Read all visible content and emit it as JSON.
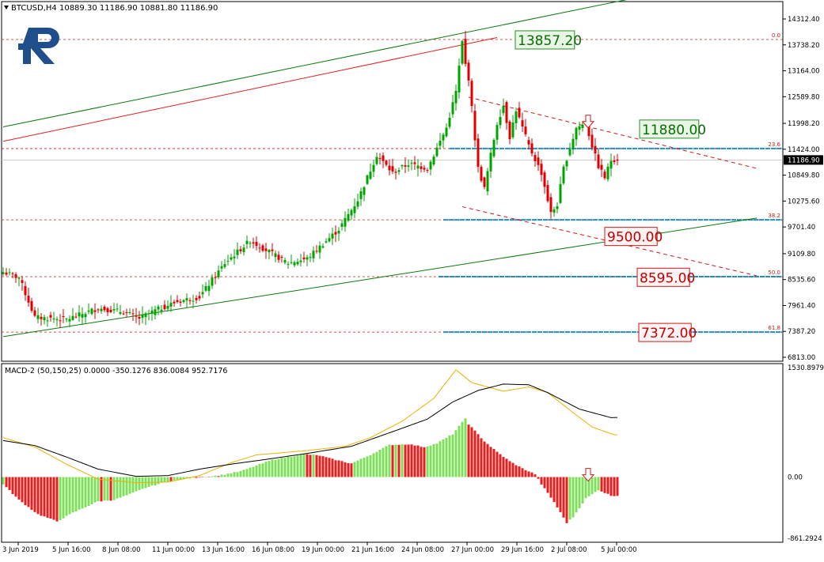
{
  "header": {
    "symbol_text": "BTCUSD,H4  10889.30 11186.90 10881.80 11186.90",
    "macd_text": "MACD-2 (50,150,25) 0.0000 -350.1276 836.0084 952.7176"
  },
  "logo": {
    "text": "R"
  },
  "colors": {
    "bull": "#00a300",
    "bear": "#e00000",
    "trend": "#0a7a0a",
    "red_channel": "#e02020",
    "fib": "#d01818",
    "level_blue": "#1e90c8",
    "macd_green": "#7ee05a",
    "macd_red": "#ee1c1c",
    "signal": "#f0b000",
    "macd_line": "#000000"
  },
  "price_axis": {
    "ticks": [
      "14312.40",
      "13738.20",
      "13164.00",
      "12589.80",
      "11998.20",
      "11424.00",
      "10849.80",
      "10275.60",
      "9701.40",
      "9109.80",
      "8535.60",
      "7961.40",
      "7387.20",
      "6813.00"
    ],
    "current": "11186.90"
  },
  "macd_axis": {
    "ticks": [
      "1530.8979",
      "0.00",
      "-861.2924"
    ]
  },
  "time_axis": {
    "labels": [
      "3 Jun 2019",
      "5 Jun 16:00",
      "8 Jun 08:00",
      "11 Jun 00:00",
      "13 Jun 16:00",
      "16 Jun 08:00",
      "19 Jun 00:00",
      "21 Jun 16:00",
      "24 Jun 08:00",
      "27 Jun 00:00",
      "29 Jun 16:00",
      "2 Jul 08:00",
      "5 Jul 00:00"
    ]
  },
  "fib_levels": [
    {
      "label": "0.0",
      "price": 13857.2
    },
    {
      "label": "23.6",
      "price": 11440
    },
    {
      "label": "38.2",
      "price": 9860
    },
    {
      "label": "50.0",
      "price": 8600
    },
    {
      "label": "61.8",
      "price": 7372
    }
  ],
  "callouts": [
    {
      "text": "13857.20",
      "color": "green",
      "price": 13857.2
    },
    {
      "text": "11880.00",
      "color": "green",
      "price": 11880
    },
    {
      "text": "9500.00",
      "color": "red",
      "price": 9500
    },
    {
      "text": "8595.00",
      "color": "red",
      "price": 8595
    },
    {
      "text": "7372.00",
      "color": "red",
      "price": 7372
    }
  ],
  "chart_data": {
    "type": "candlestick",
    "timeframe": "H4",
    "symbol": "BTCUSD",
    "ylim": [
      6813,
      14600
    ],
    "candle_count": 195,
    "close_anchors": [
      [
        0,
        8700
      ],
      [
        5,
        8580
      ],
      [
        10,
        7700
      ],
      [
        20,
        7650
      ],
      [
        30,
        7900
      ],
      [
        38,
        7820
      ],
      [
        43,
        7680
      ],
      [
        48,
        7850
      ],
      [
        55,
        8050
      ],
      [
        62,
        8150
      ],
      [
        70,
        8900
      ],
      [
        78,
        9400
      ],
      [
        84,
        9150
      ],
      [
        90,
        8900
      ],
      [
        96,
        9000
      ],
      [
        106,
        9650
      ],
      [
        112,
        10300
      ],
      [
        118,
        11300
      ],
      [
        123,
        10900
      ],
      [
        128,
        11100
      ],
      [
        134,
        11000
      ],
      [
        140,
        11900
      ],
      [
        143,
        12700
      ],
      [
        145,
        13800
      ],
      [
        146,
        13300
      ],
      [
        147,
        13000
      ],
      [
        150,
        11000
      ],
      [
        152,
        10550
      ],
      [
        154,
        11300
      ],
      [
        156,
        12000
      ],
      [
        158,
        12400
      ],
      [
        160,
        11700
      ],
      [
        162,
        12300
      ],
      [
        166,
        11500
      ],
      [
        170,
        10900
      ],
      [
        173,
        10000
      ],
      [
        175,
        10200
      ],
      [
        177,
        11000
      ],
      [
        181,
        11900
      ],
      [
        184,
        12000
      ],
      [
        186,
        11500
      ],
      [
        188,
        11050
      ],
      [
        190,
        10800
      ],
      [
        192,
        11186.9
      ]
    ],
    "ohlc_summary": {
      "open": 10889.3,
      "high": 11186.9,
      "low": 10881.8,
      "close": 11186.9
    },
    "macd": {
      "ylim": [
        -861.2924,
        1530.8979
      ],
      "hist_anchors": [
        [
          0,
          -100
        ],
        [
          5,
          -320
        ],
        [
          11,
          -520
        ],
        [
          17,
          -620
        ],
        [
          22,
          -500
        ],
        [
          30,
          -340
        ],
        [
          35,
          -320
        ],
        [
          40,
          -240
        ],
        [
          45,
          -150
        ],
        [
          52,
          -60
        ],
        [
          60,
          -10
        ],
        [
          68,
          20
        ],
        [
          75,
          80
        ],
        [
          85,
          240
        ],
        [
          95,
          320
        ],
        [
          100,
          300
        ],
        [
          104,
          250
        ],
        [
          110,
          190
        ],
        [
          116,
          310
        ],
        [
          122,
          450
        ],
        [
          128,
          460
        ],
        [
          133,
          420
        ],
        [
          137,
          470
        ],
        [
          142,
          600
        ],
        [
          146,
          820
        ],
        [
          147,
          740
        ],
        [
          152,
          500
        ],
        [
          156,
          350
        ],
        [
          160,
          220
        ],
        [
          164,
          120
        ],
        [
          168,
          40
        ],
        [
          170,
          -100
        ],
        [
          174,
          -350
        ],
        [
          178,
          -640
        ],
        [
          180,
          -560
        ],
        [
          184,
          -300
        ],
        [
          188,
          -180
        ],
        [
          192,
          -260
        ]
      ],
      "signal_anchors": [
        [
          0,
          550
        ],
        [
          10,
          420
        ],
        [
          20,
          180
        ],
        [
          30,
          -30
        ],
        [
          42,
          -80
        ],
        [
          52,
          -70
        ],
        [
          62,
          20
        ],
        [
          72,
          200
        ],
        [
          80,
          310
        ],
        [
          96,
          370
        ],
        [
          108,
          430
        ],
        [
          116,
          550
        ],
        [
          126,
          780
        ],
        [
          136,
          1100
        ],
        [
          143,
          1500
        ],
        [
          148,
          1320
        ],
        [
          158,
          1200
        ],
        [
          166,
          1260
        ],
        [
          172,
          1180
        ],
        [
          180,
          900
        ],
        [
          186,
          700
        ],
        [
          193,
          590
        ]
      ],
      "macd_line_anchors": [
        [
          0,
          510
        ],
        [
          10,
          440
        ],
        [
          20,
          280
        ],
        [
          30,
          110
        ],
        [
          42,
          10
        ],
        [
          52,
          20
        ],
        [
          62,
          110
        ],
        [
          72,
          180
        ],
        [
          82,
          240
        ],
        [
          96,
          330
        ],
        [
          110,
          430
        ],
        [
          124,
          650
        ],
        [
          134,
          810
        ],
        [
          142,
          1050
        ],
        [
          150,
          1210
        ],
        [
          158,
          1300
        ],
        [
          166,
          1290
        ],
        [
          172,
          1180
        ],
        [
          182,
          950
        ],
        [
          192,
          830
        ]
      ]
    },
    "trendlines": {
      "upper_green": [
        [
          0,
          11920
        ],
        [
          215,
          15000
        ]
      ],
      "red": [
        [
          0,
          11600
        ],
        [
          156,
          13900
        ]
      ],
      "lower_green": [
        [
          0,
          7270
        ],
        [
          238,
          9900
        ]
      ],
      "flag_upper": [
        [
          147,
          12580
        ],
        [
          238,
          11000
        ]
      ],
      "flag_lower": [
        [
          145,
          10150
        ],
        [
          238,
          8620
        ]
      ]
    },
    "signal_arrows": [
      {
        "bar": 185,
        "pane": "price",
        "price": 12180
      },
      {
        "bar": 185,
        "pane": "macd",
        "value": 120
      }
    ]
  }
}
